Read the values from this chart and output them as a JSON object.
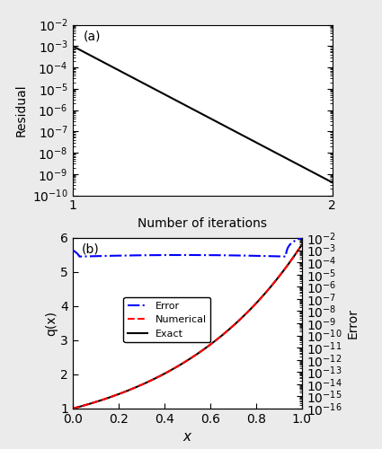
{
  "panel_a": {
    "x": [
      1,
      2
    ],
    "y": [
      0.001,
      4e-10
    ],
    "color": "black",
    "linewidth": 1.5,
    "ylim": [
      1e-10,
      0.01
    ],
    "xlim": [
      1,
      2
    ],
    "yticks": [
      1e-10,
      1e-09,
      1e-08,
      1e-07,
      1e-06,
      1e-05,
      0.0001,
      0.001,
      0.01
    ],
    "xticks": [
      1,
      2
    ],
    "xlabel": "Number of iterations",
    "ylabel": "Residual",
    "label": "(a)"
  },
  "panel_b": {
    "xlim": [
      0.0,
      1.0
    ],
    "ylim_left": [
      1,
      6
    ],
    "ylim_right": [
      1e-16,
      0.01
    ],
    "xticks": [
      0.0,
      0.2,
      0.4,
      0.6,
      0.8,
      1.0
    ],
    "yticks_left": [
      1,
      2,
      3,
      4,
      5,
      6
    ],
    "yticks_right": [
      1e-16,
      1e-15,
      1e-14,
      1e-13,
      1e-12,
      1e-11,
      1e-10,
      1e-09,
      1e-08,
      1e-07,
      1e-06,
      1e-05,
      0.0001,
      0.001,
      0.01
    ],
    "xlabel": "x",
    "ylabel_left": "q(x)",
    "ylabel_right": "Error",
    "label": "(b)",
    "exact_color": "black",
    "numerical_color": "red",
    "error_color": "blue",
    "linewidth": 1.5
  },
  "bg_color": "#ebebeb",
  "plot_bg": "white"
}
